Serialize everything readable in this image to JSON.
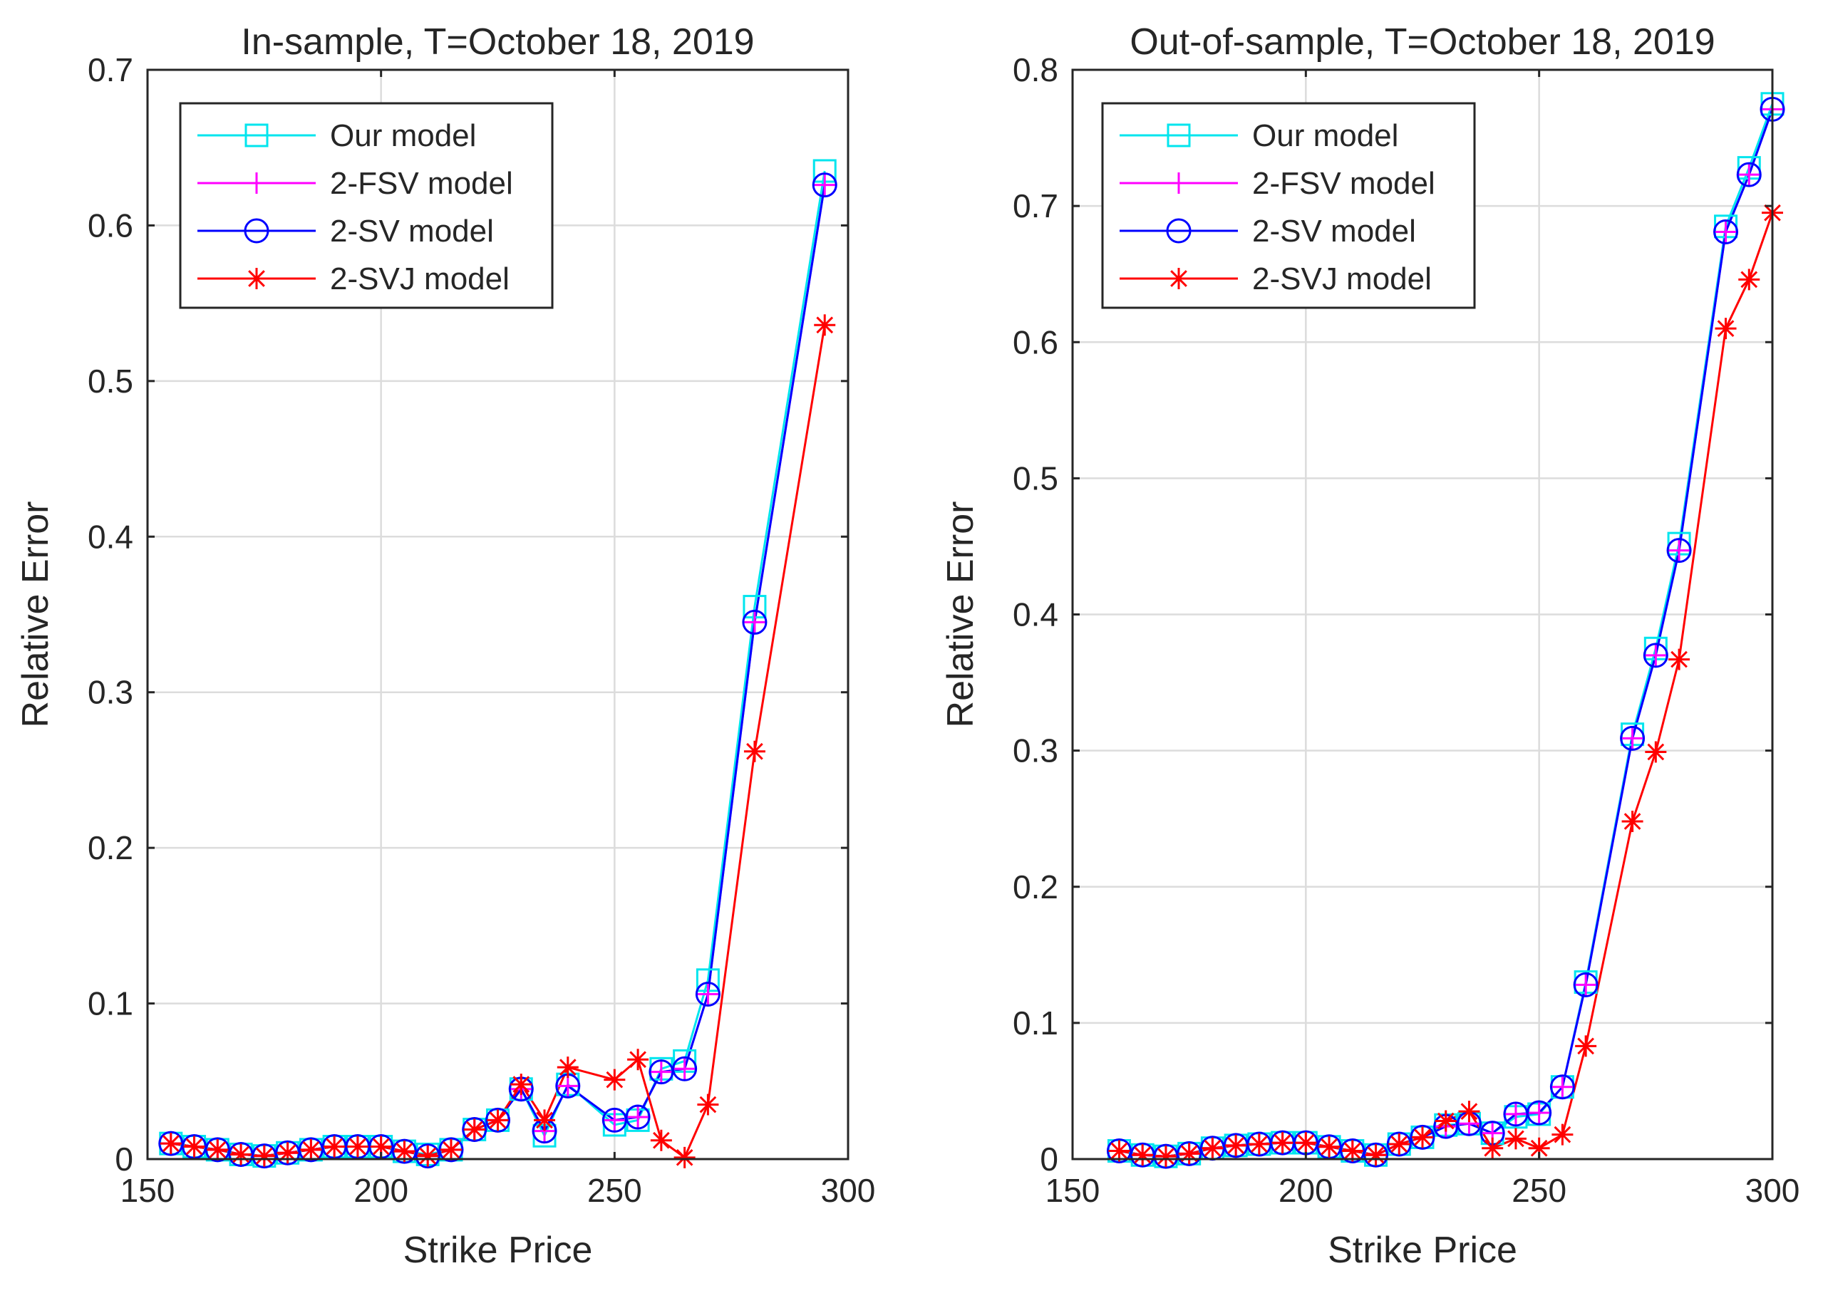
{
  "chart_data": [
    {
      "type": "line",
      "title": "In-sample, T=October 18, 2019",
      "xlabel": "Strike Price",
      "ylabel": "Relative Error",
      "xlim": [
        150,
        300
      ],
      "ylim": [
        0,
        0.7
      ],
      "xticks": [
        150,
        200,
        250,
        300
      ],
      "yticks": [
        0,
        0.1,
        0.2,
        0.3,
        0.4,
        0.5,
        0.6,
        0.7
      ],
      "ytick_labels": [
        "0",
        "0.1",
        "0.2",
        "0.3",
        "0.4",
        "0.5",
        "0.6",
        "0.7"
      ],
      "grid": true,
      "legend": "top-left",
      "x": [
        155,
        160,
        165,
        170,
        175,
        180,
        185,
        190,
        195,
        200,
        205,
        210,
        215,
        220,
        225,
        230,
        235,
        240,
        250,
        255,
        260,
        265,
        270,
        280,
        295
      ],
      "series": [
        {
          "name": "Our model",
          "color": "#00e5ee",
          "marker": "square",
          "values": [
            0.01,
            0.008,
            0.006,
            0.003,
            0.002,
            0.004,
            0.006,
            0.008,
            0.008,
            0.008,
            0.005,
            0.003,
            0.006,
            0.019,
            0.025,
            0.045,
            0.015,
            0.048,
            0.022,
            0.025,
            0.058,
            0.063,
            0.115,
            0.355,
            0.635
          ]
        },
        {
          "name": "2-FSV model",
          "color": "#ff00ff",
          "marker": "plus",
          "values": [
            0.01,
            0.008,
            0.006,
            0.003,
            0.002,
            0.004,
            0.006,
            0.008,
            0.008,
            0.008,
            0.005,
            0.002,
            0.006,
            0.019,
            0.025,
            0.045,
            0.018,
            0.047,
            0.025,
            0.027,
            0.056,
            0.058,
            0.106,
            0.345,
            0.626
          ]
        },
        {
          "name": "2-SV model",
          "color": "#0000ff",
          "marker": "circle",
          "values": [
            0.01,
            0.008,
            0.006,
            0.003,
            0.002,
            0.004,
            0.006,
            0.008,
            0.008,
            0.008,
            0.005,
            0.002,
            0.006,
            0.019,
            0.025,
            0.045,
            0.018,
            0.047,
            0.025,
            0.027,
            0.056,
            0.058,
            0.106,
            0.345,
            0.626
          ]
        },
        {
          "name": "2-SVJ model",
          "color": "#ff0000",
          "marker": "asterisk",
          "values": [
            0.01,
            0.008,
            0.006,
            0.003,
            0.002,
            0.004,
            0.006,
            0.008,
            0.008,
            0.008,
            0.005,
            0.002,
            0.006,
            0.019,
            0.025,
            0.048,
            0.025,
            0.059,
            0.051,
            0.064,
            0.012,
            0.001,
            0.035,
            0.262,
            0.536
          ]
        }
      ]
    },
    {
      "type": "line",
      "title": "Out-of-sample, T=October 18, 2019",
      "xlabel": "Strike Price",
      "ylabel": "Relative Error",
      "xlim": [
        150,
        300
      ],
      "ylim": [
        0,
        0.8
      ],
      "xticks": [
        150,
        200,
        250,
        300
      ],
      "yticks": [
        0,
        0.1,
        0.2,
        0.3,
        0.4,
        0.5,
        0.6,
        0.7,
        0.8
      ],
      "ytick_labels": [
        "0",
        "0.1",
        "0.2",
        "0.3",
        "0.4",
        "0.5",
        "0.6",
        "0.7",
        "0.8"
      ],
      "grid": true,
      "legend": "top-left",
      "x": [
        160,
        165,
        170,
        175,
        180,
        185,
        190,
        195,
        200,
        205,
        210,
        215,
        220,
        225,
        230,
        235,
        240,
        245,
        250,
        255,
        260,
        270,
        275,
        280,
        290,
        295,
        300
      ],
      "series": [
        {
          "name": "Our model",
          "color": "#00e5ee",
          "marker": "square",
          "values": [
            0.006,
            0.003,
            0.002,
            0.004,
            0.008,
            0.01,
            0.011,
            0.012,
            0.012,
            0.009,
            0.006,
            0.003,
            0.011,
            0.016,
            0.025,
            0.026,
            0.019,
            0.031,
            0.033,
            0.053,
            0.13,
            0.312,
            0.375,
            0.452,
            0.685,
            0.728,
            0.775
          ]
        },
        {
          "name": "2-FSV model",
          "color": "#ff00ff",
          "marker": "plus",
          "values": [
            0.006,
            0.003,
            0.002,
            0.004,
            0.008,
            0.01,
            0.011,
            0.012,
            0.012,
            0.009,
            0.006,
            0.003,
            0.011,
            0.016,
            0.024,
            0.026,
            0.019,
            0.033,
            0.034,
            0.053,
            0.128,
            0.309,
            0.37,
            0.447,
            0.681,
            0.723,
            0.771
          ]
        },
        {
          "name": "2-SV model",
          "color": "#0000ff",
          "marker": "circle",
          "values": [
            0.006,
            0.003,
            0.002,
            0.004,
            0.008,
            0.01,
            0.011,
            0.012,
            0.012,
            0.009,
            0.006,
            0.003,
            0.011,
            0.016,
            0.024,
            0.026,
            0.019,
            0.033,
            0.034,
            0.053,
            0.128,
            0.309,
            0.37,
            0.447,
            0.681,
            0.723,
            0.771
          ]
        },
        {
          "name": "2-SVJ model",
          "color": "#ff0000",
          "marker": "asterisk",
          "values": [
            0.006,
            0.003,
            0.002,
            0.004,
            0.008,
            0.01,
            0.011,
            0.012,
            0.012,
            0.009,
            0.006,
            0.003,
            0.011,
            0.016,
            0.028,
            0.035,
            0.008,
            0.015,
            0.008,
            0.018,
            0.083,
            0.248,
            0.299,
            0.367,
            0.61,
            0.646,
            0.695
          ]
        }
      ]
    }
  ]
}
